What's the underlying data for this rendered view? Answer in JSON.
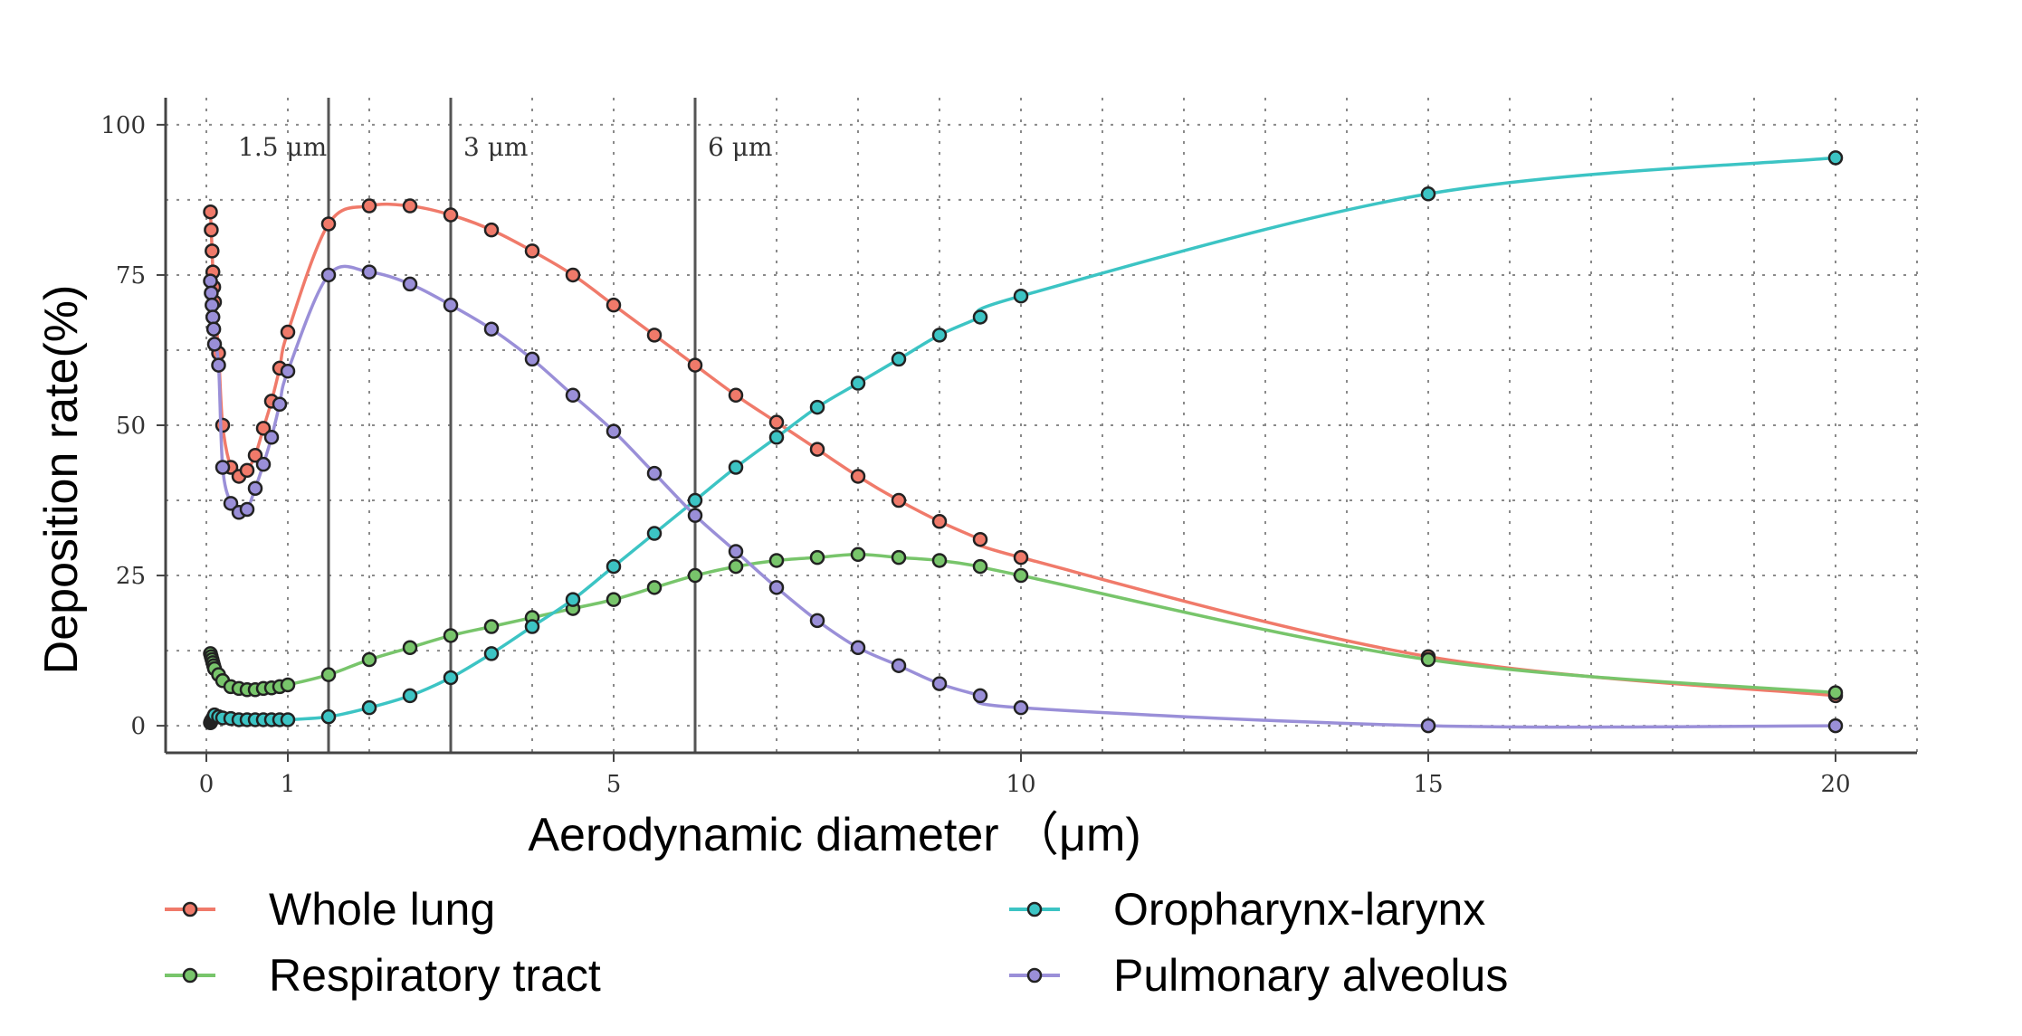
{
  "chart_data": {
    "type": "line",
    "title": "",
    "xlabel": "Aerodynamic diameter （μm)",
    "ylabel": "Deposition rate(%)",
    "xlim": [
      -0.5,
      21
    ],
    "ylim": [
      -4.5,
      104.5
    ],
    "xticks": [
      0,
      1,
      5,
      10,
      15,
      20
    ],
    "yticks": [
      0,
      25,
      50,
      75,
      100
    ],
    "grid": true,
    "legend_position": "bottom",
    "reference_lines": [
      {
        "x": 1.5,
        "label": "1.5 μm"
      },
      {
        "x": 3,
        "label": "3 μm"
      },
      {
        "x": 6,
        "label": "6 μm"
      }
    ],
    "series": [
      {
        "name": "Whole lung",
        "color": "#f07a6a",
        "x": [
          0.05,
          0.06,
          0.07,
          0.08,
          0.09,
          0.1,
          0.15,
          0.2,
          0.3,
          0.4,
          0.5,
          0.6,
          0.7,
          0.8,
          0.9,
          1.0,
          1.5,
          2.0,
          2.5,
          3.0,
          3.5,
          4.0,
          4.5,
          5.0,
          5.5,
          6.0,
          6.5,
          7.0,
          7.5,
          8.0,
          8.5,
          9.0,
          9.5,
          10,
          15,
          20
        ],
        "values": [
          85.5,
          82.5,
          79.0,
          75.5,
          73.0,
          70.5,
          62.0,
          50.0,
          43.0,
          41.5,
          42.5,
          45.0,
          49.5,
          54.0,
          59.5,
          65.5,
          83.5,
          86.5,
          86.5,
          85.0,
          82.5,
          79.0,
          75.0,
          70.0,
          65.0,
          60.0,
          55.0,
          50.5,
          46.0,
          41.5,
          37.5,
          34.0,
          31.0,
          28.0,
          11.5,
          5.0
        ]
      },
      {
        "name": "Respiratory tract",
        "color": "#78c56b",
        "x": [
          0.05,
          0.06,
          0.07,
          0.08,
          0.09,
          0.1,
          0.15,
          0.2,
          0.3,
          0.4,
          0.5,
          0.6,
          0.7,
          0.8,
          0.9,
          1.0,
          1.5,
          2.0,
          2.5,
          3.0,
          3.5,
          4.0,
          4.5,
          5.0,
          5.5,
          6.0,
          6.5,
          7.0,
          7.5,
          8.0,
          8.5,
          9.0,
          9.5,
          10,
          15,
          20
        ],
        "values": [
          12.0,
          11.5,
          11.0,
          10.5,
          10.0,
          9.5,
          8.5,
          7.5,
          6.5,
          6.2,
          6.0,
          6.0,
          6.2,
          6.3,
          6.5,
          6.8,
          8.5,
          11.0,
          13.0,
          15.0,
          16.5,
          18.0,
          19.5,
          21.0,
          23.0,
          25.0,
          26.5,
          27.5,
          28.0,
          28.5,
          28.0,
          27.5,
          26.5,
          25.0,
          11.0,
          5.5
        ]
      },
      {
        "name": "Oropharynx-larynx",
        "color": "#3cc4c4",
        "x": [
          0.05,
          0.06,
          0.07,
          0.08,
          0.09,
          0.1,
          0.15,
          0.2,
          0.3,
          0.4,
          0.5,
          0.6,
          0.7,
          0.8,
          0.9,
          1.0,
          1.5,
          2.0,
          2.5,
          3.0,
          3.5,
          4.0,
          4.5,
          5.0,
          5.5,
          6.0,
          6.5,
          7.0,
          7.5,
          8.0,
          8.5,
          9.0,
          9.5,
          10,
          15,
          20
        ],
        "values": [
          0.5,
          0.8,
          1.0,
          1.2,
          1.5,
          1.8,
          1.5,
          1.3,
          1.2,
          1.0,
          1.0,
          1.0,
          1.0,
          1.0,
          1.0,
          1.0,
          1.5,
          3.0,
          5.0,
          8.0,
          12.0,
          16.5,
          21.0,
          26.5,
          32.0,
          37.5,
          43.0,
          48.0,
          53.0,
          57.0,
          61.0,
          65.0,
          68.0,
          71.5,
          88.5,
          94.5
        ]
      },
      {
        "name": "Pulmonary alveolus",
        "color": "#9a8fd8",
        "x": [
          0.05,
          0.06,
          0.07,
          0.08,
          0.09,
          0.1,
          0.15,
          0.2,
          0.3,
          0.4,
          0.5,
          0.6,
          0.7,
          0.8,
          0.9,
          1.0,
          1.5,
          2.0,
          2.5,
          3.0,
          3.5,
          4.0,
          4.5,
          5.0,
          5.5,
          6.0,
          6.5,
          7.0,
          7.5,
          8.0,
          8.5,
          9.0,
          9.5,
          10,
          15,
          20
        ],
        "values": [
          74.0,
          72.0,
          70.0,
          68.0,
          66.0,
          63.5,
          60.0,
          43.0,
          37.0,
          35.5,
          36.0,
          39.5,
          43.5,
          48.0,
          53.5,
          59.0,
          75.0,
          75.5,
          73.5,
          70.0,
          66.0,
          61.0,
          55.0,
          49.0,
          42.0,
          35.0,
          29.0,
          23.0,
          17.5,
          13.0,
          10.0,
          7.0,
          5.0,
          3.0,
          0.0,
          0.0
        ]
      }
    ]
  }
}
